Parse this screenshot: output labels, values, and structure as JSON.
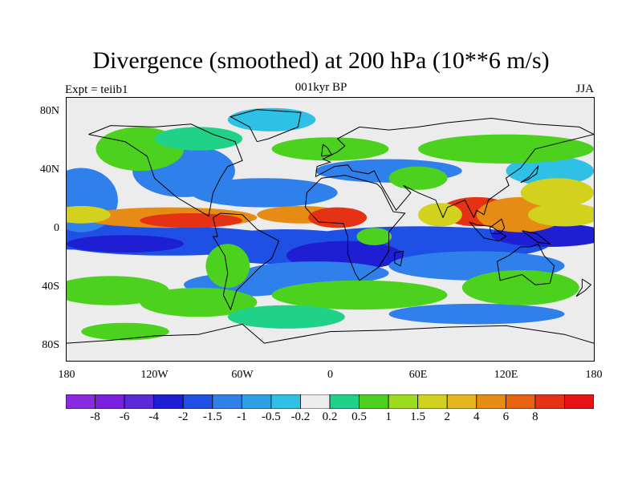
{
  "title": "Divergence (smoothed) at 200 hPa (10**6 m/s)",
  "left_label": "Expt = teiib1",
  "center_label": "001kyr BP",
  "right_label": "JJA",
  "lat_ticks": [
    {
      "label": "80N",
      "value": 80
    },
    {
      "label": "40N",
      "value": 40
    },
    {
      "label": "0",
      "value": 0
    },
    {
      "label": "40S",
      "value": -40
    },
    {
      "label": "80S",
      "value": -80
    }
  ],
  "lon_ticks": [
    {
      "label": "180",
      "value": -180
    },
    {
      "label": "120W",
      "value": -120
    },
    {
      "label": "60W",
      "value": -60
    },
    {
      "label": "0",
      "value": 0
    },
    {
      "label": "60E",
      "value": 60
    },
    {
      "label": "120E",
      "value": 120
    },
    {
      "label": "180",
      "value": 180
    }
  ],
  "colorbar": {
    "colors": [
      "#8a2be2",
      "#7a1fe0",
      "#5a2ad8",
      "#1e1ed2",
      "#1e50e6",
      "#2f80ea",
      "#2fa0e6",
      "#2fc0e6",
      "#ececec",
      "#20d288",
      "#4cd21e",
      "#9cdc1e",
      "#d2d21e",
      "#e6b41e",
      "#e68c14",
      "#e66414",
      "#e63214",
      "#e61414"
    ],
    "labels": [
      "-8",
      "-6",
      "-4",
      "-2",
      "-1.5",
      "-1",
      "-0.5",
      "-0.2",
      "0.2",
      "0.5",
      "1",
      "1.5",
      "2",
      "4",
      "6",
      "8"
    ]
  },
  "map_colors": {
    "neutral": "#ececec",
    "pos_weak": "#20d288",
    "pos_mid": "#4cd21e",
    "pos_strong": "#d2d21e",
    "pos_high": "#e68c14",
    "pos_max": "#e63214",
    "neg_weak": "#2fc0e6",
    "neg_mid": "#2f80ea",
    "neg_strong": "#1e50e6",
    "neg_max": "#1e1ed2",
    "coast": "#000000"
  }
}
